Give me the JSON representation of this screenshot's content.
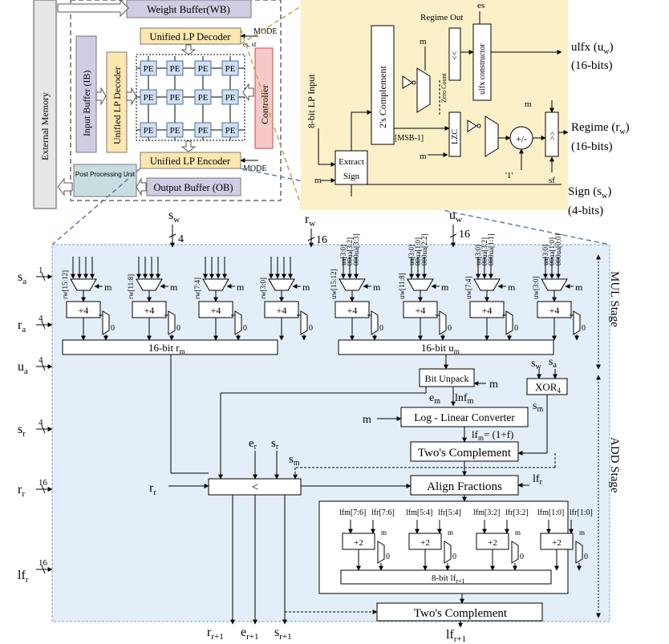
{
  "overview": {
    "external_memory": "External Memory",
    "weight_buffer": "Weight Buffer(WB)",
    "input_buffer": "Input Buffer (IB)",
    "unified_lp_decoder_top": "Unified LP Decoder",
    "unified_lp_decoder_side": "Unified LP Decoder",
    "pe": "PE",
    "controller": "Controller",
    "mode_top": "MODE",
    "es_sf": "es, sf",
    "unified_lp_encoder": "Unified LP Encoder",
    "mode_bottom": "MODE",
    "post_processing": "Post Processing Unit",
    "output_buffer": "Output Buffer (OB)"
  },
  "decoder": {
    "input_label": "8-bit LP Input",
    "regime_out": "Regime Out",
    "es": "es",
    "m1": "m",
    "m2": "m",
    "m3": "m",
    "m4": "m",
    "twos_complement": "2's Complement",
    "msb": "[MSB-1]",
    "zero_count": "Zero Count",
    "shift_left": "<<",
    "ulfx_constructor": "ulfx constructor",
    "lzc": "LZC",
    "plus_minus": "+/-",
    "one": "'1'",
    "shift_right": ">>",
    "sf": "sf",
    "extract": "Extract",
    "sign": "Sign",
    "out_ulfx": "ulfx (u",
    "out_ulfx_sub": "w",
    "out_ulfx_bits": "(16-bits)",
    "out_regime": "Regime (r",
    "out_regime_sub": "w",
    "out_regime_bits": "(16-bits)",
    "out_sign": "Sign (s",
    "out_sign_sub": "w",
    "out_sign_bits": "(4-bits)"
  },
  "mul": {
    "sw": "s",
    "sw_sub": "w",
    "sw_bits": "4",
    "rw": "r",
    "rw_sub": "w",
    "rw_bits": "16",
    "uw": "u",
    "uw_sub": "w",
    "uw_bits": "16",
    "sa": "s",
    "sa_sub": "a",
    "sa_bits": "1",
    "ra": "r",
    "ra_sub": "a",
    "ra_bits": "4",
    "ua": "u",
    "ua_sub": "a",
    "ua_bits": "4",
    "sr": "s",
    "sr_sub": "r",
    "sr_bits": "4",
    "rr_in": "r",
    "rr_in_sub": "r",
    "rr_bits": "16",
    "lfr_in": "lf",
    "lfr_in_sub": "r",
    "lfr_bits": "16",
    "r_lanes": [
      "rw[15:12]",
      "rw[11:8]",
      "rw[7:4]",
      "rw[3:0]"
    ],
    "u_lanes": [
      "uw[15:12]",
      "uw[11:8]",
      "uw[7:4]",
      "uw[3:0]"
    ],
    "ua_taps": [
      [
        "ua[3:0]",
        "00ua[3:2]",
        "000ua[3:3]"
      ],
      [
        "ua[3:0]",
        "00ua[1:0]",
        "000ua[2:2]"
      ],
      [
        "ua[3:0]",
        "00ua[3:2]",
        "000ua[1:1]"
      ],
      [
        "ua[3:0]",
        "00ua[1:0]",
        "000ua[0:0]"
      ]
    ],
    "plus4": "+4",
    "zero": "0",
    "m": "m",
    "rm_bus": "16-bit r",
    "rm_sub": "m",
    "um_bus": "16-bit u",
    "um_sub": "m",
    "stage": "MUL Stage"
  },
  "add": {
    "bit_unpack": "Bit Unpack",
    "em": "e",
    "em_sub": "m",
    "lnfm": "lnf",
    "lnfm_sub": "m",
    "xor": "XOR",
    "xor_sub": "4",
    "sw_lbl": "s",
    "sw_lbl_sub": "w",
    "sa_lbl": "s",
    "sa_lbl_sub": "a",
    "sm": "s",
    "sm_sub": "m",
    "converter": "Log - Linear Converter",
    "lfm_eq": "lf",
    "lfm_eq_sub": "m",
    "lfm_eq_rest": "= (1+f)",
    "twos1": "Two's Complement",
    "er": "e",
    "er_sub": "r",
    "sr": "s",
    "sr_sub": "r",
    "sm2": "s",
    "sm2_sub": "m",
    "rr": "r",
    "rr_sub": "r",
    "compare": "<",
    "align": "Align Fractions",
    "lfr": "lf",
    "lfr_sub": "r",
    "lane_labels": [
      [
        "lfm[7:6]",
        "lfr[7:6]"
      ],
      [
        "lfm[5:4]",
        "lfr[5:4]"
      ],
      [
        "lfm[3:2]",
        "lfr[3:2]"
      ],
      [
        "lfm[1:0]",
        "lfr[1:0]"
      ]
    ],
    "plus2": "+2",
    "bus8": "8-bit lf",
    "bus8_sub": "r+1",
    "twos2": "Two's Complement",
    "out_r": "r",
    "out_r_sub": "r+1",
    "out_e": "e",
    "out_e_sub": "r+1",
    "out_s": "s",
    "out_s_sub": "r+1",
    "out_lf": "lf",
    "out_lf_sub": "r+1",
    "stage": "ADD Stage"
  },
  "colors": {
    "bg_blue": "#e3eef9",
    "bg_gold": "#fcf0c9",
    "yellow": "#fde7b0",
    "purple": "#d2cbe4",
    "pink": "#f6c9c9",
    "pe_blue": "#cfdff2",
    "teal": "#c7dde0"
  }
}
